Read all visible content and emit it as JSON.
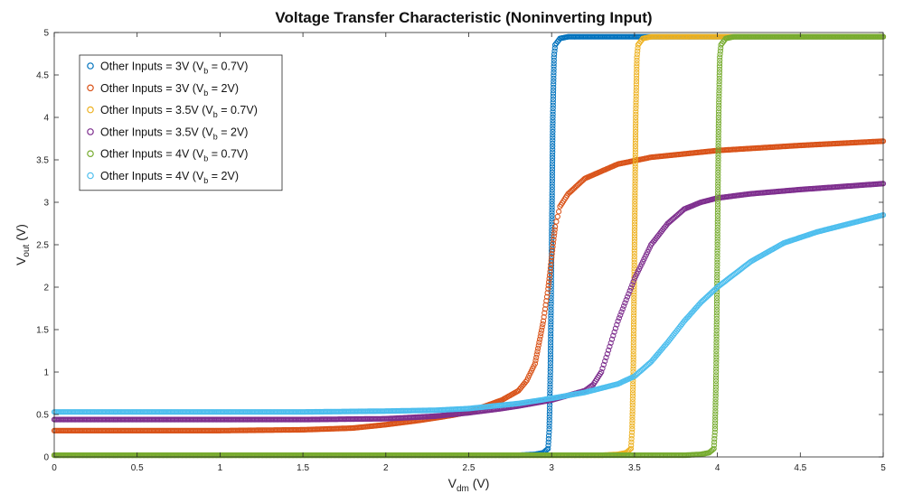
{
  "chart_data": {
    "type": "scatter",
    "title": "Voltage Transfer Characteristic (Noninverting Input)",
    "xlabel": {
      "main": "V",
      "sub": "dm",
      "unit": " (V)"
    },
    "ylabel": {
      "main": "V",
      "sub": "out",
      "unit": " (V)"
    },
    "xlim": [
      0,
      5
    ],
    "ylim": [
      0,
      5
    ],
    "xticks": [
      0,
      0.5,
      1,
      1.5,
      2,
      2.5,
      3,
      3.5,
      4,
      4.5,
      5
    ],
    "xtick_labels": [
      "0",
      "0.5",
      "1",
      "1.5",
      "2",
      "2.5",
      "3",
      "3.5",
      "4",
      "4.5",
      "5"
    ],
    "yticks": [
      0,
      0.5,
      1,
      1.5,
      2,
      2.5,
      3,
      3.5,
      4,
      4.5,
      5
    ],
    "ytick_labels": [
      "0",
      "0.5",
      "1",
      "1.5",
      "2",
      "2.5",
      "3",
      "3.5",
      "4",
      "4.5",
      "5"
    ],
    "grid": false,
    "legend_position": "top-left",
    "marker": "open-circle",
    "series": [
      {
        "legend": {
          "pre": "Other Inputs = 3V (V",
          "sub": "b",
          "post": " = 0.7V)"
        },
        "color": "#0072BD",
        "x": [
          0,
          0.5,
          1,
          1.5,
          2,
          2.5,
          2.8,
          2.9,
          2.95,
          2.98,
          2.99,
          3.0,
          3.01,
          3.02,
          3.05,
          3.1,
          3.2,
          3.5,
          4,
          4.5,
          5
        ],
        "y": [
          0.02,
          0.02,
          0.02,
          0.02,
          0.02,
          0.02,
          0.02,
          0.03,
          0.05,
          0.1,
          0.5,
          2.5,
          4.6,
          4.85,
          4.93,
          4.95,
          4.95,
          4.95,
          4.95,
          4.95,
          4.95
        ]
      },
      {
        "legend": {
          "pre": "Other Inputs = 3V (V",
          "sub": "b",
          "post": " = 2V)"
        },
        "color": "#D95319",
        "x": [
          0,
          0.5,
          1,
          1.5,
          1.8,
          2.0,
          2.2,
          2.4,
          2.5,
          2.6,
          2.7,
          2.8,
          2.85,
          2.9,
          2.95,
          2.98,
          3.0,
          3.02,
          3.05,
          3.1,
          3.2,
          3.4,
          3.6,
          3.8,
          4.0,
          4.5,
          5.0
        ],
        "y": [
          0.31,
          0.31,
          0.31,
          0.32,
          0.34,
          0.38,
          0.43,
          0.49,
          0.53,
          0.6,
          0.67,
          0.78,
          0.9,
          1.1,
          1.6,
          2.0,
          2.35,
          2.7,
          2.95,
          3.1,
          3.28,
          3.45,
          3.53,
          3.57,
          3.61,
          3.67,
          3.72
        ]
      },
      {
        "legend": {
          "pre": "Other Inputs = 3.5V (V",
          "sub": "b",
          "post": " = 0.7V)"
        },
        "color": "#EDB120",
        "x": [
          0,
          0.5,
          1,
          1.5,
          2,
          2.5,
          3.0,
          3.3,
          3.4,
          3.45,
          3.48,
          3.49,
          3.5,
          3.51,
          3.52,
          3.55,
          3.6,
          3.7,
          4.0,
          4.5,
          5
        ],
        "y": [
          0.02,
          0.02,
          0.02,
          0.02,
          0.02,
          0.02,
          0.02,
          0.02,
          0.03,
          0.05,
          0.1,
          0.5,
          2.5,
          4.6,
          4.85,
          4.93,
          4.95,
          4.95,
          4.95,
          4.95,
          4.95
        ]
      },
      {
        "legend": {
          "pre": "Other Inputs = 3.5V (V",
          "sub": "b",
          "post": " = 2V)"
        },
        "color": "#7E2F8E",
        "x": [
          0,
          0.5,
          1,
          1.5,
          2.0,
          2.3,
          2.5,
          2.7,
          2.8,
          3.0,
          3.2,
          3.25,
          3.3,
          3.35,
          3.4,
          3.45,
          3.5,
          3.6,
          3.7,
          3.8,
          3.9,
          4.0,
          4.2,
          4.5,
          5.0
        ],
        "y": [
          0.44,
          0.44,
          0.44,
          0.44,
          0.45,
          0.48,
          0.52,
          0.57,
          0.6,
          0.67,
          0.78,
          0.85,
          1.0,
          1.3,
          1.6,
          1.85,
          2.1,
          2.5,
          2.75,
          2.92,
          3.0,
          3.05,
          3.1,
          3.15,
          3.22
        ]
      },
      {
        "legend": {
          "pre": "Other Inputs = 4V (V",
          "sub": "b",
          "post": " = 0.7V)"
        },
        "color": "#77AC30",
        "x": [
          0,
          0.5,
          1,
          1.5,
          2,
          2.5,
          3.0,
          3.5,
          3.8,
          3.9,
          3.95,
          3.98,
          3.99,
          4.0,
          4.01,
          4.02,
          4.05,
          4.1,
          4.2,
          4.5,
          5
        ],
        "y": [
          0.02,
          0.02,
          0.02,
          0.02,
          0.02,
          0.02,
          0.02,
          0.02,
          0.02,
          0.03,
          0.05,
          0.1,
          0.5,
          2.5,
          4.6,
          4.85,
          4.93,
          4.95,
          4.95,
          4.95,
          4.95
        ]
      },
      {
        "legend": {
          "pre": "Other Inputs = 4V (V",
          "sub": "b",
          "post": " = 2V)"
        },
        "color": "#4DBEEE",
        "x": [
          0,
          0.5,
          1,
          1.5,
          2.0,
          2.3,
          2.5,
          2.7,
          2.8,
          3.0,
          3.2,
          3.4,
          3.5,
          3.6,
          3.7,
          3.8,
          3.9,
          4.0,
          4.2,
          4.4,
          4.6,
          4.8,
          5.0
        ],
        "y": [
          0.53,
          0.53,
          0.53,
          0.53,
          0.54,
          0.55,
          0.57,
          0.61,
          0.63,
          0.69,
          0.76,
          0.86,
          0.95,
          1.12,
          1.35,
          1.6,
          1.82,
          2.0,
          2.3,
          2.52,
          2.65,
          2.75,
          2.85
        ]
      }
    ]
  }
}
